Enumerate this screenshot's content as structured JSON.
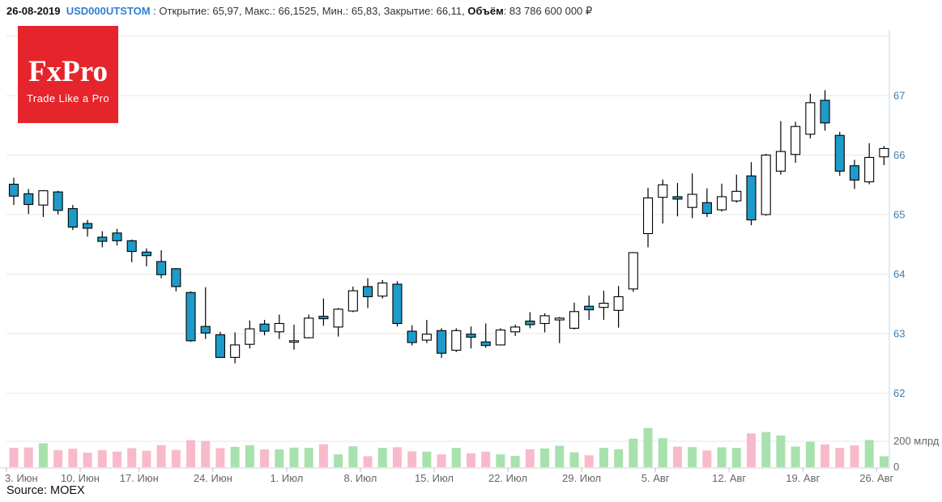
{
  "header": {
    "date": "26-08-2019",
    "symbol": "USD000UTSTOM",
    "separator": " : ",
    "ohlc_text": "Открытие: 65,97, Макс.: 66,1525, Мин.: 65,83, Закрытие: 66,11, ",
    "volume_label": "Объём",
    "volume_value": ": 83 786 600 000 ₽"
  },
  "logo": {
    "title": "FxPro",
    "tagline": "Trade Like a Pro",
    "bg_color": "#e6242b"
  },
  "source_note": "Source: MOEX",
  "chart_data": {
    "type": "candlestick+volume",
    "symbol": "USD000UTSTOM",
    "grid": true,
    "y_axis": {
      "side": "right",
      "labels": [
        "67",
        "66",
        "65",
        "64",
        "63",
        "62"
      ],
      "values": [
        67,
        66,
        65,
        64,
        63,
        62
      ],
      "range": [
        61.6,
        68.1
      ]
    },
    "volume_axis": {
      "labels": [
        {
          "text": "200 млрд",
          "value": 200
        },
        {
          "text": "0",
          "value": 0
        }
      ],
      "unit": "млрд ₽"
    },
    "x_axis": {
      "ticks": [
        {
          "label": "3. Июн",
          "index": 0
        },
        {
          "label": "10. Июн",
          "index": 5
        },
        {
          "label": "17. Июн",
          "index": 9
        },
        {
          "label": "24. Июн",
          "index": 14
        },
        {
          "label": "1. Июл",
          "index": 19
        },
        {
          "label": "8. Июл",
          "index": 24
        },
        {
          "label": "15. Июл",
          "index": 29
        },
        {
          "label": "22. Июл",
          "index": 34
        },
        {
          "label": "29. Июл",
          "index": 39
        },
        {
          "label": "5. Авг",
          "index": 44
        },
        {
          "label": "12. Авг",
          "index": 49
        },
        {
          "label": "19. Авг",
          "index": 54
        },
        {
          "label": "26. Авг",
          "index": 59
        }
      ]
    },
    "candles": [
      {
        "date": "2019-06-03",
        "open": 65.51,
        "high": 65.62,
        "low": 65.16,
        "close": 65.31,
        "volume_bln": 150
      },
      {
        "date": "2019-06-04",
        "open": 65.35,
        "high": 65.43,
        "low": 65.01,
        "close": 65.17,
        "volume_bln": 152
      },
      {
        "date": "2019-06-05",
        "open": 65.16,
        "high": 65.41,
        "low": 64.96,
        "close": 65.4,
        "volume_bln": 185
      },
      {
        "date": "2019-06-06",
        "open": 65.38,
        "high": 65.4,
        "low": 65.0,
        "close": 65.07,
        "volume_bln": 131
      },
      {
        "date": "2019-06-07",
        "open": 65.1,
        "high": 65.16,
        "low": 64.74,
        "close": 64.79,
        "volume_bln": 143
      },
      {
        "date": "2019-06-10",
        "open": 64.85,
        "high": 64.91,
        "low": 64.63,
        "close": 64.77,
        "volume_bln": 112
      },
      {
        "date": "2019-06-11",
        "open": 64.62,
        "high": 64.72,
        "low": 64.45,
        "close": 64.55,
        "volume_bln": 131
      },
      {
        "date": "2019-06-13",
        "open": 64.69,
        "high": 64.76,
        "low": 64.48,
        "close": 64.56,
        "volume_bln": 121
      },
      {
        "date": "2019-06-14",
        "open": 64.56,
        "high": 64.58,
        "low": 64.2,
        "close": 64.38,
        "volume_bln": 147
      },
      {
        "date": "2019-06-17",
        "open": 64.37,
        "high": 64.43,
        "low": 64.13,
        "close": 64.31,
        "volume_bln": 127
      },
      {
        "date": "2019-06-18",
        "open": 64.21,
        "high": 64.4,
        "low": 63.93,
        "close": 63.99,
        "volume_bln": 170
      },
      {
        "date": "2019-06-19",
        "open": 64.09,
        "high": 64.1,
        "low": 63.71,
        "close": 63.79,
        "volume_bln": 133
      },
      {
        "date": "2019-06-20",
        "open": 63.69,
        "high": 63.71,
        "low": 62.86,
        "close": 62.88,
        "volume_bln": 209
      },
      {
        "date": "2019-06-21",
        "open": 63.12,
        "high": 63.78,
        "low": 62.91,
        "close": 63.01,
        "volume_bln": 203
      },
      {
        "date": "2019-06-24",
        "open": 62.98,
        "high": 63.03,
        "low": 62.59,
        "close": 62.6,
        "volume_bln": 147
      },
      {
        "date": "2019-06-25",
        "open": 62.6,
        "high": 63.02,
        "low": 62.5,
        "close": 62.81,
        "volume_bln": 157
      },
      {
        "date": "2019-06-26",
        "open": 62.82,
        "high": 63.22,
        "low": 62.75,
        "close": 63.08,
        "volume_bln": 170
      },
      {
        "date": "2019-06-27",
        "open": 63.16,
        "high": 63.23,
        "low": 62.97,
        "close": 63.04,
        "volume_bln": 137
      },
      {
        "date": "2019-06-28",
        "open": 63.03,
        "high": 63.32,
        "low": 62.91,
        "close": 63.17,
        "volume_bln": 137
      },
      {
        "date": "2019-07-01",
        "open": 62.86,
        "high": 63.15,
        "low": 62.73,
        "close": 62.88,
        "volume_bln": 151
      },
      {
        "date": "2019-07-02",
        "open": 62.93,
        "high": 63.32,
        "low": 62.92,
        "close": 63.26,
        "volume_bln": 149
      },
      {
        "date": "2019-07-03",
        "open": 63.29,
        "high": 63.59,
        "low": 63.13,
        "close": 63.25,
        "volume_bln": 177
      },
      {
        "date": "2019-07-04",
        "open": 63.11,
        "high": 63.43,
        "low": 62.95,
        "close": 63.41,
        "volume_bln": 99
      },
      {
        "date": "2019-07-05",
        "open": 63.38,
        "high": 63.79,
        "low": 63.36,
        "close": 63.72,
        "volume_bln": 161
      },
      {
        "date": "2019-07-08",
        "open": 63.79,
        "high": 63.93,
        "low": 63.43,
        "close": 63.62,
        "volume_bln": 85
      },
      {
        "date": "2019-07-09",
        "open": 63.63,
        "high": 63.9,
        "low": 63.59,
        "close": 63.85,
        "volume_bln": 149
      },
      {
        "date": "2019-07-10",
        "open": 63.83,
        "high": 63.88,
        "low": 63.12,
        "close": 63.17,
        "volume_bln": 154
      },
      {
        "date": "2019-07-11",
        "open": 63.04,
        "high": 63.14,
        "low": 62.8,
        "close": 62.85,
        "volume_bln": 122
      },
      {
        "date": "2019-07-12",
        "open": 62.89,
        "high": 63.23,
        "low": 62.84,
        "close": 62.99,
        "volume_bln": 120
      },
      {
        "date": "2019-07-15",
        "open": 63.05,
        "high": 63.09,
        "low": 62.59,
        "close": 62.67,
        "volume_bln": 99
      },
      {
        "date": "2019-07-16",
        "open": 62.72,
        "high": 63.09,
        "low": 62.69,
        "close": 63.05,
        "volume_bln": 149
      },
      {
        "date": "2019-07-17",
        "open": 62.99,
        "high": 63.12,
        "low": 62.75,
        "close": 62.94,
        "volume_bln": 108
      },
      {
        "date": "2019-07-18",
        "open": 62.86,
        "high": 63.17,
        "low": 62.76,
        "close": 62.8,
        "volume_bln": 120
      },
      {
        "date": "2019-07-19",
        "open": 62.81,
        "high": 63.09,
        "low": 62.8,
        "close": 63.06,
        "volume_bln": 99
      },
      {
        "date": "2019-07-22",
        "open": 63.03,
        "high": 63.15,
        "low": 62.96,
        "close": 63.11,
        "volume_bln": 87
      },
      {
        "date": "2019-07-23",
        "open": 63.21,
        "high": 63.36,
        "low": 63.09,
        "close": 63.15,
        "volume_bln": 138
      },
      {
        "date": "2019-07-24",
        "open": 63.17,
        "high": 63.34,
        "low": 63.02,
        "close": 63.3,
        "volume_bln": 145
      },
      {
        "date": "2019-07-25",
        "open": 63.23,
        "high": 63.28,
        "low": 62.84,
        "close": 63.26,
        "volume_bln": 166
      },
      {
        "date": "2019-07-26",
        "open": 63.09,
        "high": 63.52,
        "low": 63.07,
        "close": 63.37,
        "volume_bln": 115
      },
      {
        "date": "2019-07-29",
        "open": 63.46,
        "high": 63.64,
        "low": 63.23,
        "close": 63.4,
        "volume_bln": 92
      },
      {
        "date": "2019-07-30",
        "open": 63.44,
        "high": 63.72,
        "low": 63.23,
        "close": 63.51,
        "volume_bln": 149
      },
      {
        "date": "2019-07-31",
        "open": 63.39,
        "high": 63.8,
        "low": 63.1,
        "close": 63.62,
        "volume_bln": 138
      },
      {
        "date": "2019-08-01",
        "open": 63.75,
        "high": 64.37,
        "low": 63.7,
        "close": 64.36,
        "volume_bln": 220
      },
      {
        "date": "2019-08-02",
        "open": 64.68,
        "high": 65.45,
        "low": 64.45,
        "close": 65.28,
        "volume_bln": 302
      },
      {
        "date": "2019-08-05",
        "open": 65.29,
        "high": 65.59,
        "low": 64.85,
        "close": 65.5,
        "volume_bln": 224
      },
      {
        "date": "2019-08-06",
        "open": 65.3,
        "high": 65.53,
        "low": 64.97,
        "close": 65.26,
        "volume_bln": 159
      },
      {
        "date": "2019-08-07",
        "open": 65.12,
        "high": 65.69,
        "low": 64.94,
        "close": 65.34,
        "volume_bln": 155
      },
      {
        "date": "2019-08-08",
        "open": 65.2,
        "high": 65.44,
        "low": 64.96,
        "close": 65.02,
        "volume_bln": 129
      },
      {
        "date": "2019-08-09",
        "open": 65.08,
        "high": 65.52,
        "low": 65.05,
        "close": 65.3,
        "volume_bln": 153
      },
      {
        "date": "2019-08-12",
        "open": 65.23,
        "high": 65.67,
        "low": 65.2,
        "close": 65.39,
        "volume_bln": 149
      },
      {
        "date": "2019-08-13",
        "open": 65.65,
        "high": 65.88,
        "low": 64.82,
        "close": 64.91,
        "volume_bln": 261
      },
      {
        "date": "2019-08-14",
        "open": 65.0,
        "high": 66.02,
        "low": 64.98,
        "close": 66.0,
        "volume_bln": 271
      },
      {
        "date": "2019-08-15",
        "open": 65.73,
        "high": 66.57,
        "low": 65.67,
        "close": 66.06,
        "volume_bln": 245
      },
      {
        "date": "2019-08-16",
        "open": 66.01,
        "high": 66.56,
        "low": 65.87,
        "close": 66.48,
        "volume_bln": 159
      },
      {
        "date": "2019-08-19",
        "open": 66.35,
        "high": 67.03,
        "low": 66.28,
        "close": 66.88,
        "volume_bln": 196
      },
      {
        "date": "2019-08-20",
        "open": 66.92,
        "high": 67.09,
        "low": 66.41,
        "close": 66.54,
        "volume_bln": 176
      },
      {
        "date": "2019-08-21",
        "open": 66.33,
        "high": 66.39,
        "low": 65.65,
        "close": 65.73,
        "volume_bln": 149
      },
      {
        "date": "2019-08-22",
        "open": 65.82,
        "high": 65.92,
        "low": 65.43,
        "close": 65.58,
        "volume_bln": 169
      },
      {
        "date": "2019-08-23",
        "open": 65.55,
        "high": 66.2,
        "low": 65.51,
        "close": 65.96,
        "volume_bln": 210
      },
      {
        "date": "2019-08-26",
        "open": 65.97,
        "high": 66.1525,
        "low": 65.83,
        "close": 66.11,
        "volume_bln": 83.8
      }
    ],
    "colors": {
      "bull_fill": "#ffffff",
      "bear_fill": "#1e9bc8",
      "candle_line": "#000000",
      "volume_up": "#a7e1ad",
      "volume_down": "#f8bacb",
      "grid": "#e7e7e7",
      "price_label": "#3f7cac",
      "axis_label_gray": "#666666",
      "axis_line": "#c9d9e5",
      "x_axis_line": "#d2d2d2"
    }
  }
}
